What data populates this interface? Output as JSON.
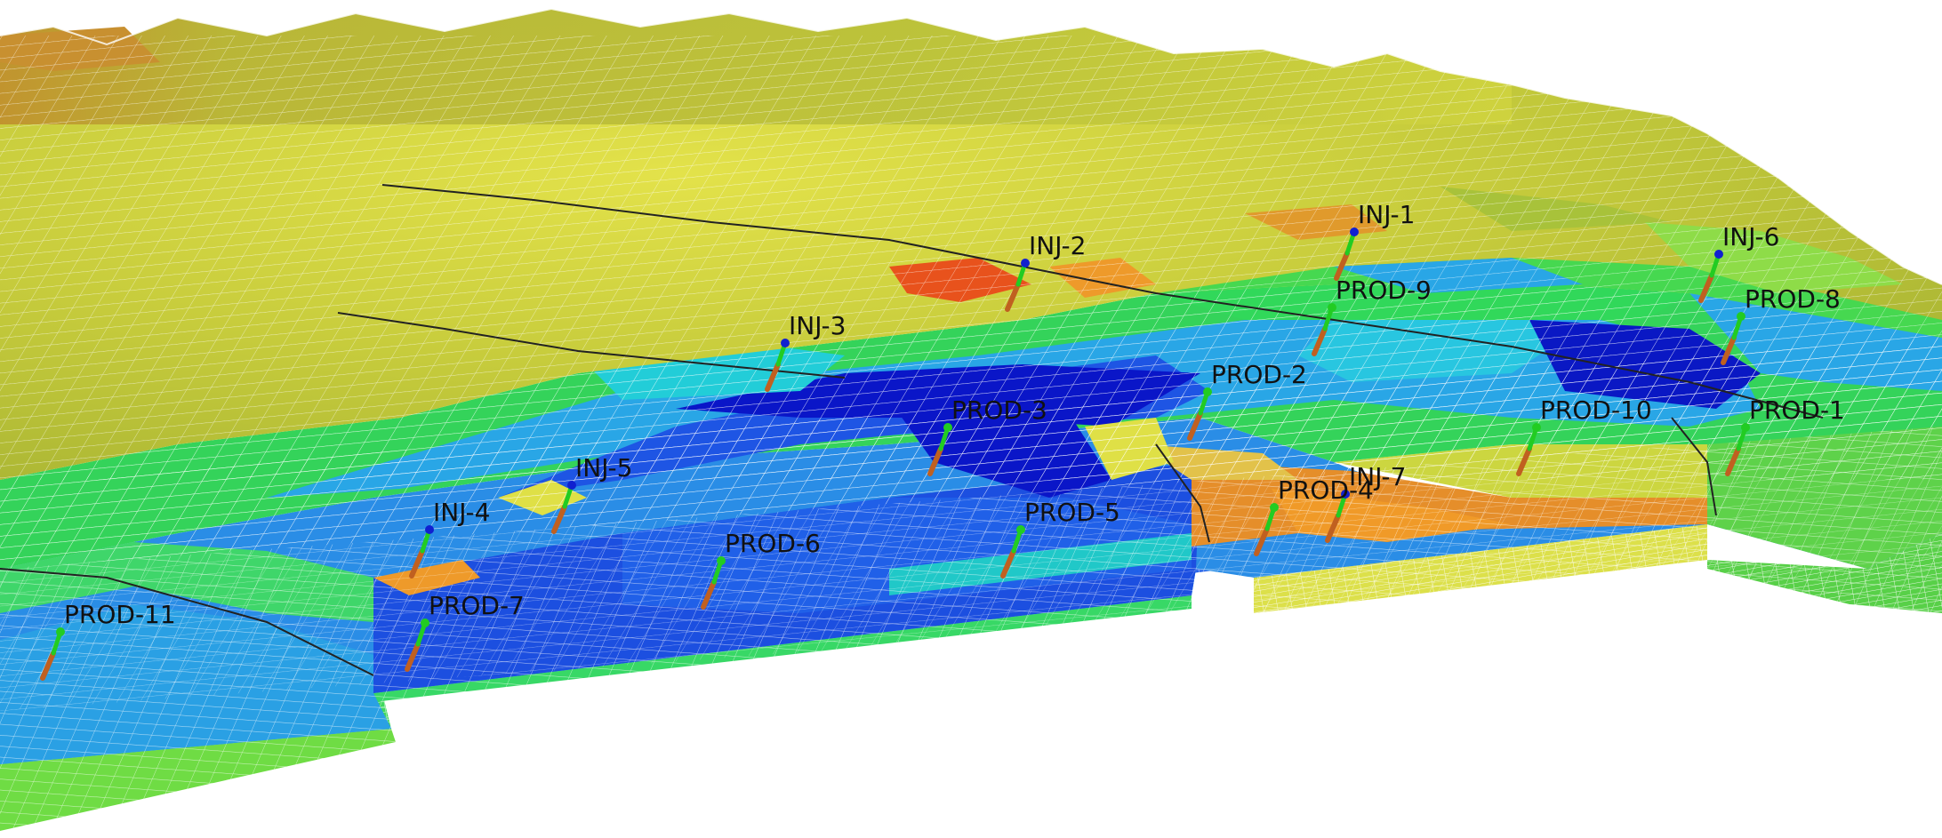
{
  "scene": {
    "background": "#ffffff",
    "mesh_line_color": "#ffffff",
    "colors": {
      "dark_blue": "#0a16c8",
      "blue": "#1f5ee8",
      "light_blue": "#29a6e6",
      "cyan": "#20d0d8",
      "green": "#31d85a",
      "light_green": "#8ee24a",
      "olive": "#b8c23c",
      "yellow": "#dfe046",
      "orange": "#ee9a2a",
      "red_orange": "#e8521c",
      "brown": "#b08a30"
    },
    "axis_colors": {
      "up": "#22cc22",
      "x": "#1020d0",
      "down": "#c06020"
    }
  },
  "wells": [
    {
      "name": "INJ-1",
      "type": "injector"
    },
    {
      "name": "INJ-2",
      "type": "injector"
    },
    {
      "name": "INJ-3",
      "type": "injector"
    },
    {
      "name": "INJ-4",
      "type": "injector"
    },
    {
      "name": "INJ-5",
      "type": "injector"
    },
    {
      "name": "INJ-6",
      "type": "injector"
    },
    {
      "name": "INJ-7",
      "type": "injector"
    },
    {
      "name": "PROD-1",
      "type": "producer"
    },
    {
      "name": "PROD-2",
      "type": "producer"
    },
    {
      "name": "PROD-3",
      "type": "producer"
    },
    {
      "name": "PROD-4",
      "type": "producer"
    },
    {
      "name": "PROD-5",
      "type": "producer"
    },
    {
      "name": "PROD-6",
      "type": "producer"
    },
    {
      "name": "PROD-7",
      "type": "producer"
    },
    {
      "name": "PROD-8",
      "type": "producer"
    },
    {
      "name": "PROD-9",
      "type": "producer"
    },
    {
      "name": "PROD-10",
      "type": "producer"
    },
    {
      "name": "PROD-11",
      "type": "producer"
    }
  ]
}
